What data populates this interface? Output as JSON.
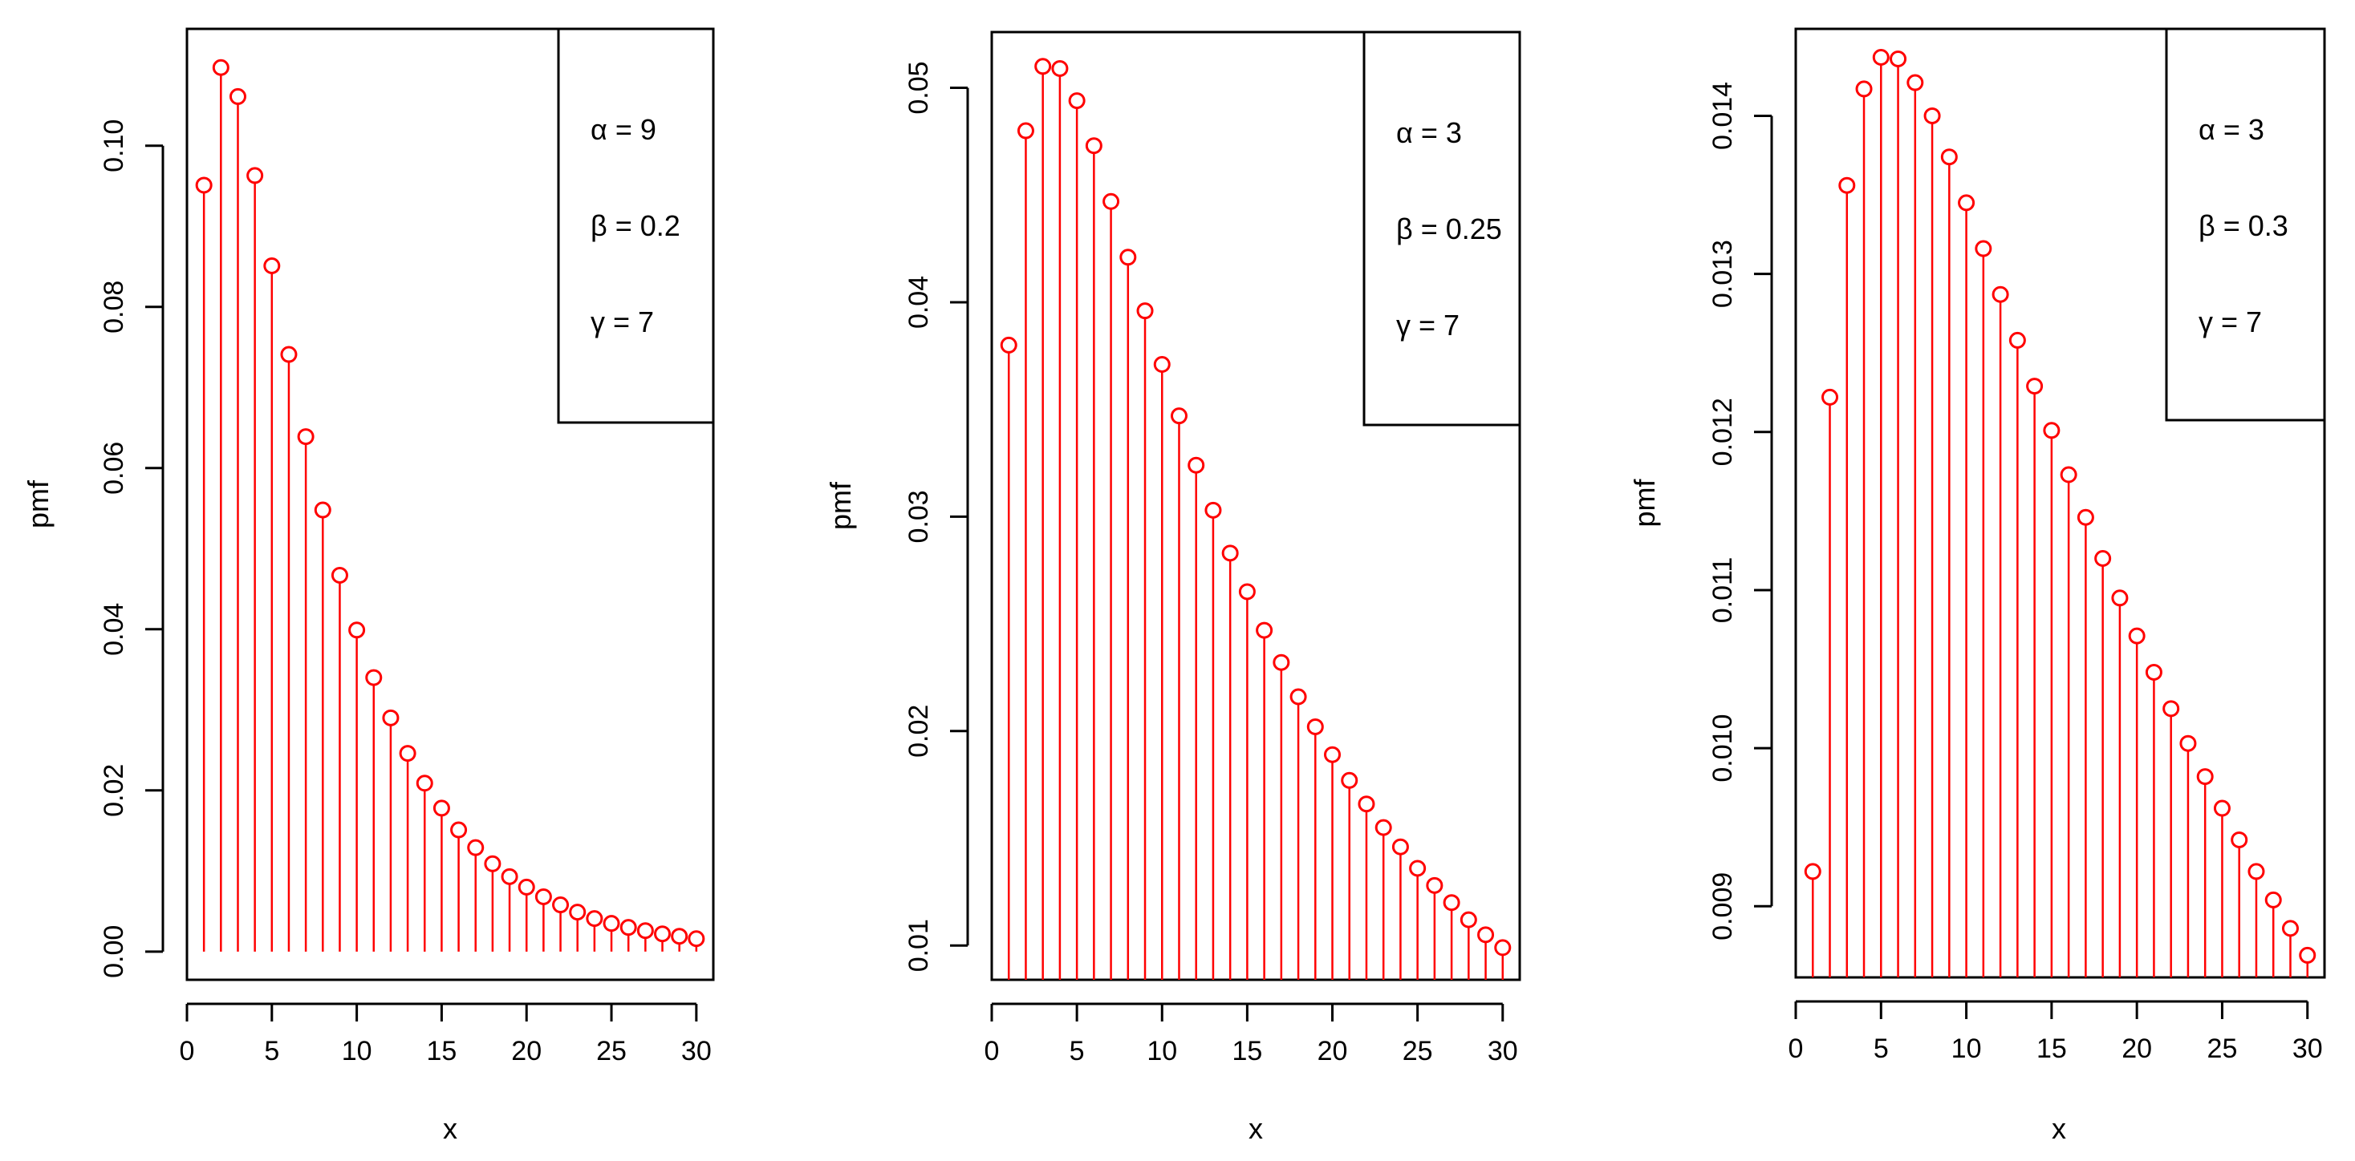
{
  "colors": {
    "stem": "#ff0000",
    "point": "#ff0000",
    "axis": "#000000",
    "background": "#ffffff"
  },
  "chart_data": [
    {
      "type": "stem",
      "xlabel": "x",
      "ylabel": "pmf",
      "xlim": [
        0,
        31
      ],
      "ylim": [
        -0.0035,
        0.1145
      ],
      "xticks": [
        0,
        5,
        10,
        15,
        20,
        25,
        30
      ],
      "xtick_labels": [
        "0",
        "5",
        "10",
        "15",
        "20",
        "25",
        "30"
      ],
      "yticks": [
        0,
        0.02,
        0.04,
        0.06,
        0.08,
        0.1
      ],
      "ytick_labels": [
        "0.00",
        "0.02",
        "0.04",
        "0.06",
        "0.08",
        "0.10"
      ],
      "legend": {
        "position": "top-right",
        "entries": [
          "α = 9",
          "β = 0.2",
          "γ = 7"
        ]
      },
      "x": [
        1,
        2,
        3,
        4,
        5,
        6,
        7,
        8,
        9,
        10,
        11,
        12,
        13,
        14,
        15,
        16,
        17,
        18,
        19,
        20,
        21,
        22,
        23,
        24,
        25,
        26,
        27,
        28,
        29,
        30
      ],
      "values": [
        0.0951,
        0.1097,
        0.1061,
        0.0963,
        0.0851,
        0.0741,
        0.0639,
        0.0548,
        0.0467,
        0.0399,
        0.034,
        0.029,
        0.0246,
        0.0209,
        0.0178,
        0.0151,
        0.0129,
        0.0109,
        0.0093,
        0.008,
        0.0068,
        0.0058,
        0.0049,
        0.0041,
        0.0035,
        0.003,
        0.0026,
        0.0022,
        0.0019,
        0.0016
      ]
    },
    {
      "type": "stem",
      "xlabel": "x",
      "ylabel": "pmf",
      "xlim": [
        0,
        31
      ],
      "ylim": [
        0.0084,
        0.0526
      ],
      "xticks": [
        0,
        5,
        10,
        15,
        20,
        25,
        30
      ],
      "xtick_labels": [
        "0",
        "5",
        "10",
        "15",
        "20",
        "25",
        "30"
      ],
      "yticks": [
        0.01,
        0.02,
        0.03,
        0.04,
        0.05
      ],
      "ytick_labels": [
        "0.01",
        "0.02",
        "0.03",
        "0.04",
        "0.05"
      ],
      "legend": {
        "position": "top-right",
        "entries": [
          "α = 3",
          "β = 0.25",
          "γ = 7"
        ]
      },
      "x": [
        1,
        2,
        3,
        4,
        5,
        6,
        7,
        8,
        9,
        10,
        11,
        12,
        13,
        14,
        15,
        16,
        17,
        18,
        19,
        20,
        21,
        22,
        23,
        24,
        25,
        26,
        27,
        28,
        29,
        30
      ],
      "values": [
        0.038,
        0.048,
        0.051,
        0.0509,
        0.0494,
        0.0473,
        0.0447,
        0.0421,
        0.0396,
        0.0371,
        0.0347,
        0.0324,
        0.0303,
        0.0283,
        0.0265,
        0.0247,
        0.0232,
        0.0216,
        0.0202,
        0.0189,
        0.0177,
        0.0166,
        0.0155,
        0.0146,
        0.0136,
        0.0128,
        0.012,
        0.0112,
        0.0105,
        0.0099
      ]
    },
    {
      "type": "stem",
      "xlabel": "x",
      "ylabel": "pmf",
      "xlim": [
        0,
        31
      ],
      "ylim": [
        0.00855,
        0.01455
      ],
      "xticks": [
        0,
        5,
        10,
        15,
        20,
        25,
        30
      ],
      "xtick_labels": [
        "0",
        "5",
        "10",
        "15",
        "20",
        "25",
        "30"
      ],
      "yticks": [
        0.009,
        0.01,
        0.011,
        0.012,
        0.013,
        0.014
      ],
      "ytick_labels": [
        "0.009",
        "0.010",
        "0.011",
        "0.012",
        "0.013",
        "0.014"
      ],
      "legend": {
        "position": "top-right",
        "entries": [
          "α = 3",
          "β = 0.3",
          "γ = 7"
        ]
      },
      "x": [
        1,
        2,
        3,
        4,
        5,
        6,
        7,
        8,
        9,
        10,
        11,
        12,
        13,
        14,
        15,
        16,
        17,
        18,
        19,
        20,
        21,
        22,
        23,
        24,
        25,
        26,
        27,
        28,
        29,
        30
      ],
      "values": [
        0.00922,
        0.01222,
        0.01356,
        0.01417,
        0.01437,
        0.01436,
        0.01421,
        0.014,
        0.01374,
        0.01345,
        0.01316,
        0.01287,
        0.01258,
        0.01229,
        0.01201,
        0.01173,
        0.01146,
        0.0112,
        0.01095,
        0.01071,
        0.01048,
        0.01025,
        0.01003,
        0.00982,
        0.00962,
        0.00942,
        0.00922,
        0.00904,
        0.00886,
        0.00869
      ]
    }
  ]
}
